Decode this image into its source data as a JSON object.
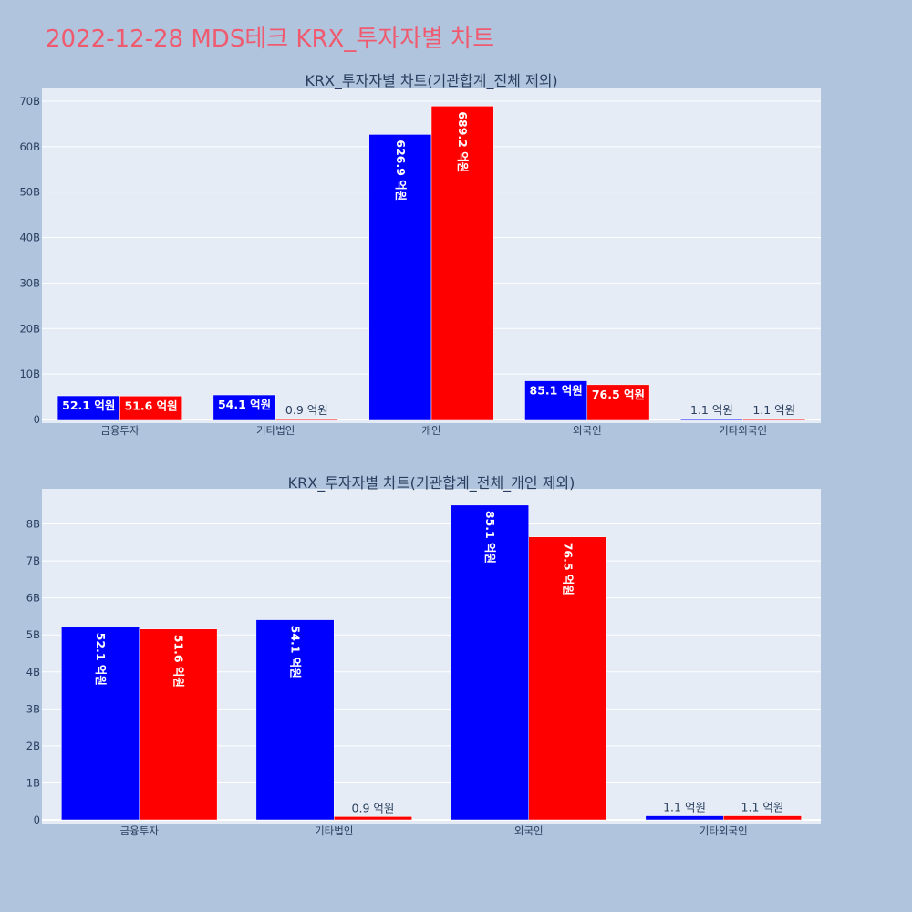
{
  "page": {
    "title": "2022-12-28 MDS테크 KRX_투자자별 차트"
  },
  "colors": {
    "series1": "#0000ff",
    "series2": "#ff0000",
    "plot_bg": "#e5ecf6",
    "paper_bg": "#b0c4de",
    "title": "#ef5a6f",
    "text": "#2a3f5f"
  },
  "chart_data": [
    {
      "type": "bar",
      "title": "KRX_투자자별 차트(기관합계_전체 제외)",
      "categories": [
        "금융투자",
        "기타법인",
        "개인",
        "외국인",
        "기타외국인"
      ],
      "series": [
        {
          "values": [
            5210000000,
            5410000000,
            62690000000,
            8510000000,
            110000000
          ],
          "labels": [
            "52.1 억원",
            "54.1 억원",
            "626.9 억원",
            "85.1 억원",
            "1.1 억원"
          ]
        },
        {
          "values": [
            5160000000,
            90000000,
            68920000000,
            7650000000,
            110000000
          ],
          "labels": [
            "51.6 억원",
            "0.9 억원",
            "689.2 억원",
            "76.5 억원",
            "1.1 억원"
          ]
        }
      ],
      "yticks": [
        0,
        10000000000,
        20000000000,
        30000000000,
        40000000000,
        50000000000,
        60000000000,
        70000000000
      ],
      "ytick_labels": [
        "0",
        "10B",
        "20B",
        "30B",
        "40B",
        "50B",
        "60B",
        "70B"
      ],
      "ylim": [
        0,
        73000000000
      ],
      "grid": true,
      "legend": "none"
    },
    {
      "type": "bar",
      "title": "KRX_투자자별 차트(기관합계_전체_개인 제외)",
      "categories": [
        "금융투자",
        "기타법인",
        "외국인",
        "기타외국인"
      ],
      "series": [
        {
          "values": [
            5210000000,
            5410000000,
            8510000000,
            110000000
          ],
          "labels": [
            "52.1 억원",
            "54.1 억원",
            "85.1 억원",
            "1.1 억원"
          ]
        },
        {
          "values": [
            5160000000,
            90000000,
            7650000000,
            110000000
          ],
          "labels": [
            "51.6 억원",
            "0.9 억원",
            "76.5 억원",
            "1.1 억원"
          ]
        }
      ],
      "yticks": [
        0,
        1000000000,
        2000000000,
        3000000000,
        4000000000,
        5000000000,
        6000000000,
        7000000000,
        8000000000
      ],
      "ytick_labels": [
        "0",
        "1B",
        "2B",
        "3B",
        "4B",
        "5B",
        "6B",
        "7B",
        "8B"
      ],
      "ylim": [
        0,
        8950000000
      ],
      "grid": true,
      "legend": "none"
    }
  ]
}
